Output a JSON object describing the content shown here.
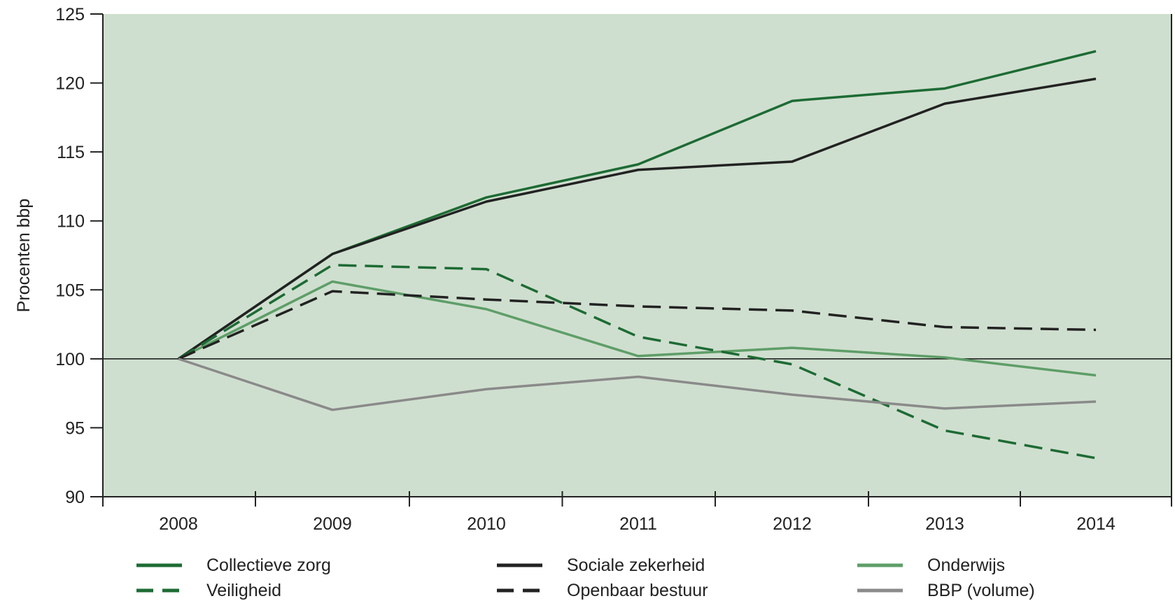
{
  "chart_data": {
    "type": "line",
    "title": "",
    "xlabel": "",
    "ylabel": "Procenten bbp",
    "x": [
      "2008",
      "2009",
      "2010",
      "2011",
      "2012",
      "2013",
      "2014"
    ],
    "ylim": [
      90,
      125
    ],
    "yticks": [
      "90",
      "95",
      "100",
      "105",
      "110",
      "115",
      "120",
      "125"
    ],
    "reference_line": 100,
    "background_color": "#cfdfcf",
    "grid": false,
    "legend_position": "bottom",
    "series": [
      {
        "name": "Collectieve zorg",
        "values": [
          100,
          107.6,
          111.7,
          114.1,
          118.7,
          119.6,
          122.3
        ],
        "color": "#1d6b34",
        "style": "solid"
      },
      {
        "name": "Sociale zekerheid",
        "values": [
          100,
          107.6,
          111.4,
          113.7,
          114.3,
          118.5,
          120.3
        ],
        "color": "#222222",
        "style": "solid"
      },
      {
        "name": "Onderwijs",
        "values": [
          100,
          105.6,
          103.6,
          100.2,
          100.8,
          100.1,
          98.8
        ],
        "color": "#5e9e68",
        "style": "solid"
      },
      {
        "name": "Veiligheid",
        "values": [
          100,
          106.8,
          106.5,
          101.6,
          99.6,
          94.8,
          92.8
        ],
        "color": "#1d6b34",
        "style": "dashed"
      },
      {
        "name": "Openbaar bestuur",
        "values": [
          100,
          104.9,
          104.3,
          103.8,
          103.5,
          102.3,
          102.1
        ],
        "color": "#222222",
        "style": "dashed"
      },
      {
        "name": "BBP (volume)",
        "values": [
          100,
          96.3,
          97.8,
          98.7,
          97.4,
          96.4,
          96.9
        ],
        "color": "#8a8a8a",
        "style": "solid"
      }
    ]
  }
}
